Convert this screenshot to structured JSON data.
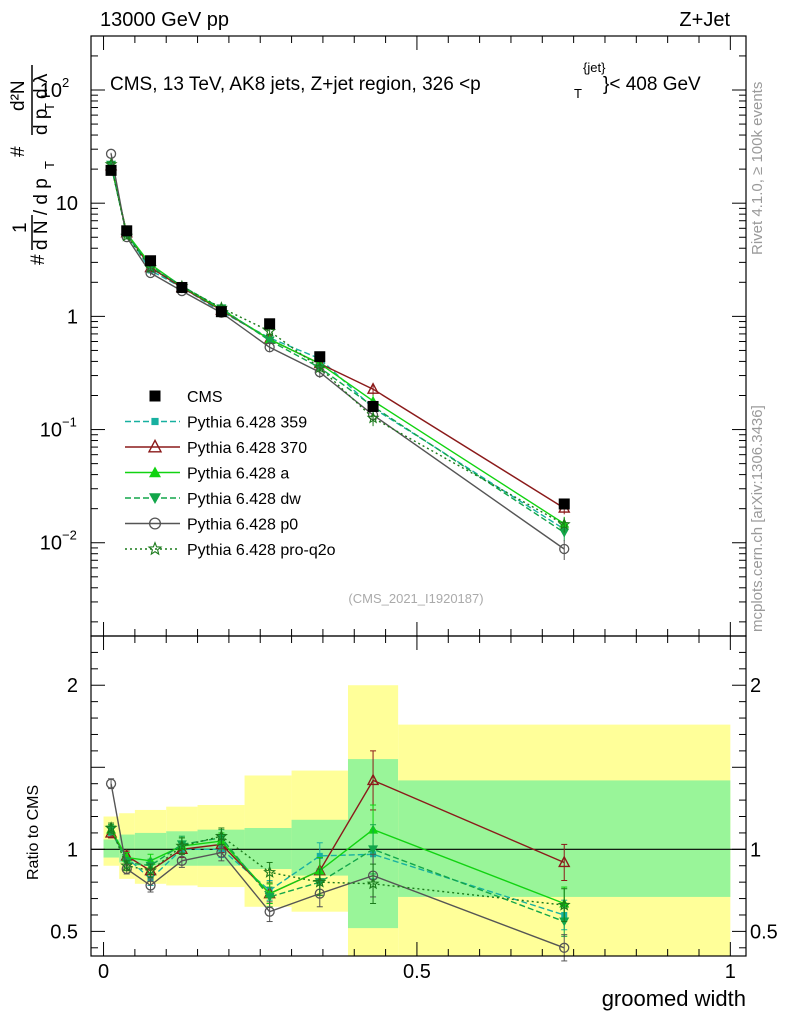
{
  "header": {
    "left": "13000 GeV pp",
    "right": "Z+Jet"
  },
  "title": {
    "main": "CMS, 13 TeV, AK8 jets, Z+jet region, 326 <p",
    "sub_T": "T",
    "sup_jet": "{jet}",
    "tail": "}< 408 GeV"
  },
  "ylabel_main": {
    "one": "1",
    "hash": "#",
    "dn": "d N / d p",
    "sub_T": "T",
    "frac_num": "d²N",
    "frac_den": "d p",
    "frac_den2": "d λ"
  },
  "side": {
    "rivet": "Rivet 4.1.0, ≥ 100k events",
    "mcplots": "mcplots.cern.ch [arXiv:1306.3436]"
  },
  "analysis_tag": "(CMS_2021_I1920187)",
  "ratio_ylabel": "Ratio to CMS",
  "xlabel": "groomed width",
  "main_ticks": {
    "y": [
      {
        "value": 0.01,
        "base": "10",
        "exp": "−2"
      },
      {
        "value": 0.1,
        "base": "10",
        "exp": "−1"
      },
      {
        "value": 1,
        "base": "1",
        "exp": ""
      },
      {
        "value": 10,
        "base": "10",
        "exp": ""
      },
      {
        "value": 100,
        "base": "10",
        "exp": "2"
      }
    ]
  },
  "ratio_ticks": [
    {
      "value": 0.5,
      "label": "0.5"
    },
    {
      "value": 1,
      "label": "1"
    },
    {
      "value": 2,
      "label": "2"
    }
  ],
  "x_ticks": [
    {
      "value": 0,
      "label": "0"
    },
    {
      "value": 0.5,
      "label": "0.5"
    },
    {
      "value": 1,
      "label": "1"
    }
  ],
  "chart_data": {
    "type": "line",
    "title": "CMS, 13 TeV, AK8 jets, Z+jet region, 326 < pT{jet} < 408 GeV",
    "xlabel": "groomed width",
    "ylabel": "1/N dN/dpT d²N/dpT dλ",
    "yscale": "log",
    "xlim": [
      0,
      1
    ],
    "ylim": [
      0.0015,
      300
    ],
    "ratio_ylim": [
      0.35,
      2.3
    ],
    "legend_position": "middle-left",
    "bins": [
      {
        "lo": 0.0,
        "hi": 0.025
      },
      {
        "lo": 0.025,
        "hi": 0.05
      },
      {
        "lo": 0.05,
        "hi": 0.1
      },
      {
        "lo": 0.1,
        "hi": 0.15
      },
      {
        "lo": 0.15,
        "hi": 0.225
      },
      {
        "lo": 0.225,
        "hi": 0.3
      },
      {
        "lo": 0.3,
        "hi": 0.39
      },
      {
        "lo": 0.39,
        "hi": 0.47
      },
      {
        "lo": 0.47,
        "hi": 1.0
      }
    ],
    "x": [
      0.012,
      0.037,
      0.075,
      0.125,
      0.188,
      0.265,
      0.345,
      0.43,
      0.735
    ],
    "band_inner": [
      [
        0.95,
        1.06
      ],
      [
        0.92,
        1.09
      ],
      [
        0.9,
        1.1
      ],
      [
        0.9,
        1.11
      ],
      [
        0.9,
        1.12
      ],
      [
        0.88,
        1.13
      ],
      [
        0.84,
        1.18
      ],
      [
        0.52,
        1.55
      ],
      [
        0.71,
        1.42
      ]
    ],
    "band_outer": [
      [
        0.9,
        1.2
      ],
      [
        0.82,
        1.22
      ],
      [
        0.79,
        1.24
      ],
      [
        0.78,
        1.26
      ],
      [
        0.77,
        1.27
      ],
      [
        0.65,
        1.45
      ],
      [
        0.62,
        1.48
      ],
      [
        0.35,
        2.0
      ],
      [
        0.35,
        1.76
      ]
    ],
    "data": {
      "name": "CMS",
      "color": "#000000",
      "values": [
        19.5,
        5.7,
        3.1,
        1.8,
        1.1,
        0.86,
        0.44,
        0.16,
        0.022
      ]
    },
    "series": [
      {
        "name": "Pythia 6.428 359",
        "color": "#17b0a0",
        "marker": "square-small",
        "dash": "6,3",
        "ratio": [
          1.1,
          0.95,
          0.82,
          1.0,
          1.0,
          0.75,
          0.96,
          0.97,
          0.6
        ],
        "rerr": [
          0.03,
          0.03,
          0.04,
          0.05,
          0.05,
          0.06,
          0.08,
          0.15,
          0.09
        ]
      },
      {
        "name": "Pythia 6.428 370",
        "color": "#8b1a1a",
        "marker": "triangle-open",
        "dash": "",
        "ratio": [
          1.1,
          0.96,
          0.87,
          1.0,
          1.03,
          0.73,
          0.87,
          1.42,
          0.92
        ],
        "rerr": [
          0.03,
          0.03,
          0.04,
          0.05,
          0.05,
          0.06,
          0.08,
          0.18,
          0.11
        ]
      },
      {
        "name": "Pythia 6.428 a",
        "color": "#11d311",
        "marker": "triangle",
        "dash": "",
        "ratio": [
          1.12,
          0.95,
          0.93,
          1.02,
          1.05,
          0.73,
          0.87,
          1.12,
          0.67
        ],
        "rerr": [
          0.03,
          0.03,
          0.04,
          0.05,
          0.05,
          0.06,
          0.08,
          0.15,
          0.1
        ]
      },
      {
        "name": "Pythia 6.428 dw",
        "color": "#12a64a",
        "marker": "triangle-down",
        "dash": "6,3",
        "ratio": [
          1.12,
          0.92,
          0.9,
          1.03,
          1.07,
          0.71,
          0.8,
          1.0,
          0.56
        ],
        "rerr": [
          0.03,
          0.03,
          0.04,
          0.05,
          0.05,
          0.06,
          0.08,
          0.15,
          0.09
        ]
      },
      {
        "name": "Pythia 6.428 p0",
        "color": "#555555",
        "marker": "circle-open",
        "dash": "",
        "ratio": [
          1.4,
          0.88,
          0.78,
          0.93,
          0.98,
          0.62,
          0.73,
          0.84,
          0.4
        ],
        "rerr": [
          0.03,
          0.03,
          0.04,
          0.04,
          0.05,
          0.06,
          0.08,
          0.13,
          0.08
        ]
      },
      {
        "name": "Pythia 6.428 pro-q2o",
        "color": "#1a7a1a",
        "marker": "star",
        "dash": "2,3",
        "ratio": [
          1.13,
          0.9,
          0.87,
          1.02,
          1.08,
          0.86,
          0.8,
          0.79,
          0.66
        ],
        "rerr": [
          0.03,
          0.03,
          0.04,
          0.05,
          0.05,
          0.06,
          0.08,
          0.12,
          0.1
        ]
      }
    ]
  }
}
